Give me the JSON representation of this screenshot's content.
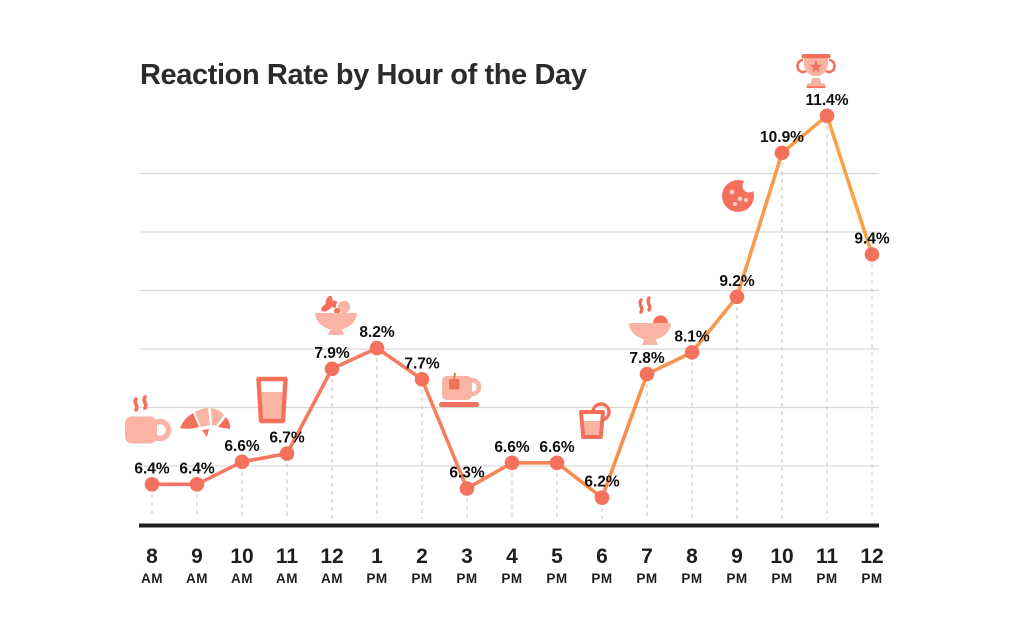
{
  "title": "Reaction Rate by Hour of the Day",
  "colors": {
    "coral": "#f4705c",
    "salmon_light": "#f9b4a4",
    "chip_light": "#fcd3c8",
    "line_gradient_start": "#f4736c",
    "line_gradient_mid": "#f78a52",
    "line_gradient_end": "#f9a545",
    "dot": "#f4715d",
    "grid": "#d9d9d9",
    "drop_line": "#cfcfcf",
    "axis": "#1f1f1f",
    "label_text": "#0e0e0e",
    "tick_text": "#1e1e1e"
  },
  "chart_data": {
    "type": "line",
    "title": "Reaction Rate by Hour of the Day",
    "xlabel": "",
    "ylabel": "",
    "ylim": [
      5.7,
      12.2
    ],
    "grid": {
      "horizontal": "solid",
      "vertical": "dashed-drop-lines"
    },
    "legend": "none",
    "categories": [
      {
        "hour": "8",
        "period": "AM"
      },
      {
        "hour": "9",
        "period": "AM"
      },
      {
        "hour": "10",
        "period": "AM"
      },
      {
        "hour": "11",
        "period": "AM"
      },
      {
        "hour": "12",
        "period": "AM"
      },
      {
        "hour": "1",
        "period": "PM"
      },
      {
        "hour": "2",
        "period": "PM"
      },
      {
        "hour": "3",
        "period": "PM"
      },
      {
        "hour": "4",
        "period": "PM"
      },
      {
        "hour": "5",
        "period": "PM"
      },
      {
        "hour": "6",
        "period": "PM"
      },
      {
        "hour": "7",
        "period": "PM"
      },
      {
        "hour": "8",
        "period": "PM"
      },
      {
        "hour": "9",
        "period": "PM"
      },
      {
        "hour": "10",
        "period": "PM"
      },
      {
        "hour": "11",
        "period": "PM"
      },
      {
        "hour": "12",
        "period": "PM"
      }
    ],
    "values": [
      6.4,
      6.4,
      6.6,
      6.7,
      7.9,
      8.2,
      7.7,
      6.3,
      6.6,
      6.6,
      6.2,
      7.8,
      8.1,
      9.2,
      10.9,
      11.4,
      9.4
    ],
    "point_labels": [
      "6.4%",
      "6.4%",
      "6.6%",
      "6.7%",
      "7.9%",
      "8.2%",
      "7.7%",
      "6.3%",
      "6.6%",
      "6.6%",
      "6.2%",
      "7.8%",
      "8.1%",
      "9.2%",
      "10.9%",
      "11.4%",
      "9.4%"
    ],
    "icons": [
      {
        "at": "8 AM",
        "name": "coffee-mug"
      },
      {
        "at": "9 AM",
        "name": "croissant"
      },
      {
        "at": "11 AM",
        "name": "juice-glass"
      },
      {
        "at": "12 AM",
        "name": "fruit-bowl"
      },
      {
        "at": "2 PM",
        "name": "tea-cup"
      },
      {
        "at": "6 PM",
        "name": "citrus-drink"
      },
      {
        "at": "7 PM",
        "name": "ramen-bowl"
      },
      {
        "at": "9 PM",
        "name": "cookie"
      },
      {
        "at": "11 PM",
        "name": "trophy"
      }
    ]
  }
}
